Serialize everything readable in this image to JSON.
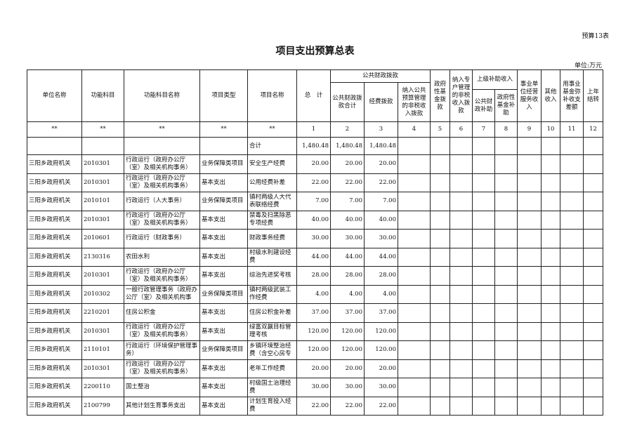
{
  "tag": "预算13表",
  "title": "项目支出预算总表",
  "unit": "单位:万元",
  "headers": {
    "unit_name": "单位名称",
    "func_code": "功能科目",
    "func_name": "功能科目名称",
    "proj_type": "项目类型",
    "proj_name": "项目名称",
    "total": "总　计",
    "public": "公共财政拨款",
    "public_total": "公共财政拨款合计",
    "funding": "经费拨款",
    "nontax": "纳入公共预算管理的非税收入拨款",
    "gov_fund": "政府性基金拨款",
    "special": "纳入专户管理的非税收入拨款",
    "upper": "上级补助收入",
    "upper_public": "公共财政补助",
    "upper_fund": "政府性基金补助",
    "business": "事业单位经营服务收入",
    "other": "其他收入",
    "balance": "用事业基金弥补收支差额",
    "carry": "上年结转"
  },
  "index_row": [
    "**",
    "**",
    "**",
    "**",
    "**",
    "1",
    "2",
    "3",
    "4",
    "5",
    "6",
    "7",
    "8",
    "9",
    "10",
    "11",
    "12"
  ],
  "total_row": {
    "label": "合计",
    "total": "1,480.48",
    "public_total": "1,480.48",
    "funding": "1,480.48"
  },
  "rows": [
    {
      "unit": "三阳乡政府机关",
      "code": "2010301",
      "func": "行政运行（政府办公厅（室）及相关机构事务）",
      "type": "业务保障类项目",
      "name": "安全生产经费",
      "total": "20.00",
      "pt": "20.00",
      "f": "20.00"
    },
    {
      "unit": "三阳乡政府机关",
      "code": "2010301",
      "func": "行政运行（政府办公厅（室）及相关机构事务）",
      "type": "基本支出",
      "name": "公用经费补差",
      "total": "22.00",
      "pt": "22.00",
      "f": "22.00"
    },
    {
      "unit": "三阳乡政府机关",
      "code": "2010101",
      "func": "行政运行（人大事务）",
      "type": "业务保障类项目",
      "name": "镇村两级人大代表联络经费",
      "total": "7.00",
      "pt": "7.00",
      "f": "7.00"
    },
    {
      "unit": "三阳乡政府机关",
      "code": "2010301",
      "func": "行政运行（政府办公厅（室）及相关机构事务）",
      "type": "基本支出",
      "name": "禁毒及扫黑除恶专项经费",
      "total": "40.00",
      "pt": "40.00",
      "f": "40.00"
    },
    {
      "unit": "三阳乡政府机关",
      "code": "2010601",
      "func": "行政运行（财政事务）",
      "type": "基本支出",
      "name": "财政事务经费",
      "total": "30.00",
      "pt": "30.00",
      "f": "30.00"
    },
    {
      "unit": "三阳乡政府机关",
      "code": "2130316",
      "func": "农田水利",
      "type": "基本支出",
      "name": "村级水利建设经费",
      "total": "44.00",
      "pt": "44.00",
      "f": "44.00"
    },
    {
      "unit": "三阳乡政府机关",
      "code": "2010301",
      "func": "行政运行（政府办公厅（室）及相关机构事务）",
      "type": "基本支出",
      "name": "综治先进奖考核",
      "total": "28.00",
      "pt": "28.00",
      "f": "28.00"
    },
    {
      "unit": "三阳乡政府机关",
      "code": "2010302",
      "func": "一般行政管理事务（政府办公厅（室）及相关机构事务）",
      "type": "业务保障类项目",
      "name": "镇村两级武装工作经费",
      "total": "4.00",
      "pt": "4.00",
      "f": "4.00"
    },
    {
      "unit": "三阳乡政府机关",
      "code": "2210201",
      "func": "住房公积金",
      "type": "基本支出",
      "name": "住房公积金补差",
      "total": "37.00",
      "pt": "37.00",
      "f": "37.00"
    },
    {
      "unit": "三阳乡政府机关",
      "code": "2010301",
      "func": "行政运行（政府办公厅（室）及相关机构事务）",
      "type": "基本支出",
      "name": "绿富双赢目标管理考核",
      "total": "120.00",
      "pt": "120.00",
      "f": "120.00"
    },
    {
      "unit": "三阳乡政府机关",
      "code": "2110101",
      "func": "行政运行（环境保护管理事务）",
      "type": "业务保障类项目",
      "name": "乡镇环境整治经费（含空心房专项整治）",
      "total": "120.00",
      "pt": "120.00",
      "f": "120.00"
    },
    {
      "unit": "三阳乡政府机关",
      "code": "2010301",
      "func": "行政运行（政府办公厅（室）及相关机构事务）",
      "type": "基本支出",
      "name": "老年工作经费",
      "total": "20.00",
      "pt": "20.00",
      "f": "20.00"
    },
    {
      "unit": "三阳乡政府机关",
      "code": "2200110",
      "func": "国土整治",
      "type": "基本支出",
      "name": "村级国土治理经费",
      "total": "30.00",
      "pt": "30.00",
      "f": "30.00"
    },
    {
      "unit": "三阳乡政府机关",
      "code": "2100799",
      "func": "其他计划生育事务支出",
      "type": "基本支出",
      "name": "计划生育投入经费",
      "total": "22.00",
      "pt": "22.00",
      "f": "22.00"
    }
  ]
}
